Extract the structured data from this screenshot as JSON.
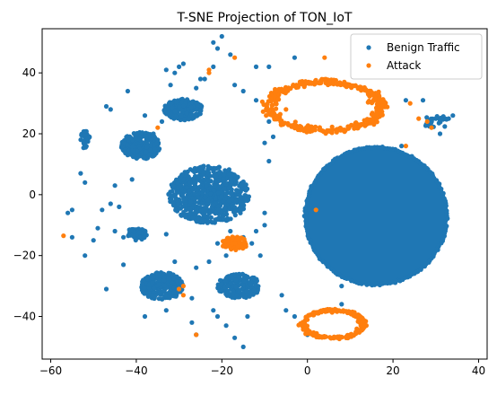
{
  "chart_data": {
    "type": "scatter",
    "title": "T-SNE Projection of TON_IoT",
    "xlabel": "",
    "ylabel": "",
    "xlim": [
      -62.0,
      42.0
    ],
    "ylim": [
      -54.0,
      54.5
    ],
    "xticks": [
      -60,
      -40,
      -20,
      0,
      20,
      40
    ],
    "yticks": [
      -40,
      -20,
      0,
      20,
      40
    ],
    "grid": false,
    "legend_position": "top-right",
    "series": [
      {
        "name": "Benign Traffic",
        "color": "#1f77b4",
        "clusters": [
          {
            "shape": "blob",
            "center": [
              16,
              -7
            ],
            "radius": [
              16.5,
              22.5
            ]
          },
          {
            "shape": "ellipse",
            "center": [
              -23,
              0
            ],
            "radius": [
              9.5,
              9.5
            ],
            "count": 700
          },
          {
            "shape": "ellipse",
            "center": [
              -29,
              28
            ],
            "radius": [
              4.5,
              3.5
            ],
            "count": 220
          },
          {
            "shape": "ellipse",
            "center": [
              -39,
              16
            ],
            "radius": [
              4.5,
              4.5
            ],
            "count": 260
          },
          {
            "shape": "ellipse",
            "center": [
              -34,
              -30
            ],
            "radius": [
              5,
              4.5
            ],
            "count": 260
          },
          {
            "shape": "ellipse",
            "center": [
              -16,
              -30
            ],
            "radius": [
              5,
              4
            ],
            "count": 220
          },
          {
            "shape": "ellipse",
            "center": [
              -40,
              -13
            ],
            "radius": [
              2.5,
              2
            ],
            "count": 50
          },
          {
            "shape": "ellipse",
            "center": [
              -52,
              18
            ],
            "radius": [
              1.2,
              3
            ],
            "count": 30
          },
          {
            "shape": "ellipse",
            "center": [
              30,
              24
            ],
            "radius": [
              3,
              2.5
            ],
            "count": 25
          }
        ],
        "points": [
          [
            -52,
            -20
          ],
          [
            -47,
            -31
          ],
          [
            -43,
            -23
          ],
          [
            -50,
            -15
          ],
          [
            -49,
            -11
          ],
          [
            -48,
            -5
          ],
          [
            -46,
            -3
          ],
          [
            -45,
            3
          ],
          [
            -41,
            5
          ],
          [
            -53,
            7
          ],
          [
            -52,
            4
          ],
          [
            -55,
            -5
          ],
          [
            -55,
            -14
          ],
          [
            -56,
            -6
          ],
          [
            -44,
            -4
          ],
          [
            -45,
            -12
          ],
          [
            -43,
            -14
          ],
          [
            -47,
            29
          ],
          [
            -46,
            28
          ],
          [
            -42,
            34
          ],
          [
            -38,
            26
          ],
          [
            -36,
            20
          ],
          [
            -34,
            24
          ],
          [
            -32,
            36
          ],
          [
            -30,
            42
          ],
          [
            -29,
            43
          ],
          [
            -33,
            41
          ],
          [
            -31,
            40
          ],
          [
            -26,
            35
          ],
          [
            -25,
            38
          ],
          [
            -24,
            38
          ],
          [
            -22,
            42
          ],
          [
            -22,
            50
          ],
          [
            -20,
            52
          ],
          [
            -21,
            48
          ],
          [
            -18,
            46
          ],
          [
            -17,
            36
          ],
          [
            -15,
            34
          ],
          [
            -12,
            31
          ],
          [
            -9,
            24
          ],
          [
            -8,
            19
          ],
          [
            -10,
            17
          ],
          [
            -9,
            11
          ],
          [
            -15,
            -14
          ],
          [
            -12,
            -12
          ],
          [
            -10,
            -6
          ],
          [
            -11,
            -20
          ],
          [
            -13,
            -16
          ],
          [
            -33,
            -13
          ],
          [
            -31,
            -22
          ],
          [
            -26,
            -24
          ],
          [
            -23,
            -22
          ],
          [
            -19,
            -20
          ],
          [
            -21,
            -16
          ],
          [
            -18,
            -12
          ],
          [
            -14,
            -40
          ],
          [
            -21,
            -40
          ],
          [
            -27,
            -34
          ],
          [
            -33,
            -38
          ],
          [
            -38,
            -40
          ],
          [
            -27,
            -42
          ],
          [
            -19,
            -43
          ],
          [
            -17,
            -47
          ],
          [
            -15,
            -50
          ],
          [
            -26,
            -46
          ],
          [
            -22,
            -38
          ],
          [
            -36,
            -27
          ],
          [
            -3,
            45
          ],
          [
            -9,
            42
          ],
          [
            -12,
            42
          ],
          [
            -5,
            -38
          ],
          [
            -6,
            -33
          ],
          [
            -3,
            -40
          ],
          [
            0,
            -46
          ],
          [
            8,
            -36
          ],
          [
            8,
            -30
          ],
          [
            22,
            16
          ],
          [
            23,
            31
          ],
          [
            27,
            31
          ],
          [
            33,
            25
          ],
          [
            34,
            26
          ],
          [
            30,
            25
          ],
          [
            31,
            20
          ],
          [
            -10,
            -10
          ],
          [
            -35,
            18
          ]
        ]
      },
      {
        "name": "Attack",
        "color": "#ff7f0e",
        "clusters": [
          {
            "shape": "ring",
            "center": [
              4,
              29
            ],
            "radius": [
              13,
              8
            ],
            "count": 360
          },
          {
            "shape": "ring",
            "center": [
              6,
              -42.5
            ],
            "radius": [
              7,
              4.5
            ],
            "count": 220
          },
          {
            "shape": "ellipse",
            "center": [
              -17,
              -16
            ],
            "radius": [
              3,
              2.2
            ],
            "count": 90
          }
        ],
        "points": [
          [
            -57,
            -13.5
          ],
          [
            -23,
            40
          ],
          [
            -23,
            41
          ],
          [
            -17,
            45
          ],
          [
            -35,
            22
          ],
          [
            -26,
            -46
          ],
          [
            -30,
            -31
          ],
          [
            -29,
            -30
          ],
          [
            23,
            16
          ],
          [
            24,
            30
          ],
          [
            26,
            25
          ],
          [
            28,
            24
          ],
          [
            29,
            22
          ],
          [
            4,
            45
          ],
          [
            2,
            -5
          ],
          [
            1,
            21
          ],
          [
            -5,
            28
          ],
          [
            -29,
            -33
          ]
        ]
      }
    ]
  }
}
